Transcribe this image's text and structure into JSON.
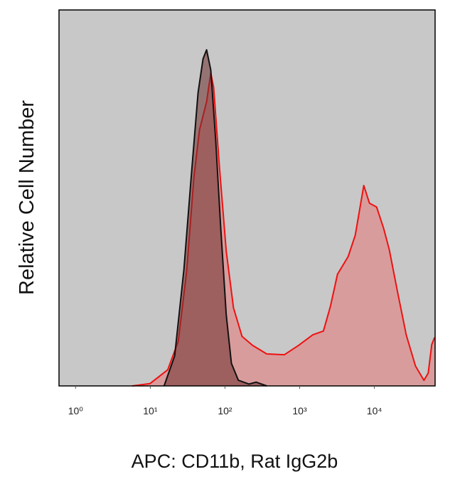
{
  "chart_data": {
    "type": "area",
    "x_label": "APC: CD11b, Rat IgG2b",
    "y_label": "Relative Cell Number",
    "xscale": "log",
    "xlim": [
      0.6,
      65000
    ],
    "ylim": [
      0,
      100
    ],
    "xticks": [
      {
        "value": 1,
        "label": "10⁰"
      },
      {
        "value": 10,
        "label": "10¹"
      },
      {
        "value": 100,
        "label": "10²"
      },
      {
        "value": 1000,
        "label": "10³"
      },
      {
        "value": 10000,
        "label": "10⁴"
      }
    ],
    "background": "#c8c8c8",
    "series": [
      {
        "color": "#ee1111",
        "fill": "rgba(232,120,120,0.55)",
        "x": [
          5.73,
          9.89,
          17.1,
          23.7,
          30.8,
          38.3,
          45.6,
          56.7,
          64.6,
          70.5,
          84.0,
          104,
          130,
          169,
          234,
          362,
          625,
          968,
          1500,
          2080,
          2580,
          3210,
          4460,
          5550,
          7210,
          8590,
          10700,
          13300,
          15800,
          20500,
          26700,
          35500,
          46100,
          52500,
          58600,
          64000
        ],
        "values": [
          0,
          0.6,
          4.3,
          11.9,
          30.8,
          55.4,
          68.1,
          75.6,
          83.2,
          79.4,
          58.6,
          35.9,
          20.8,
          13.2,
          10.8,
          8.5,
          8.3,
          10.8,
          13.6,
          14.6,
          21.2,
          29.7,
          34.4,
          40.1,
          53.3,
          48.6,
          47.6,
          41.9,
          36.3,
          24.9,
          13.6,
          5.3,
          1.5,
          3.4,
          11.0,
          12.9
        ]
      },
      {
        "color": "#111111",
        "fill": "rgba(110,45,45,0.55)",
        "x": [
          15.3,
          21.2,
          28.2,
          35.1,
          43.6,
          50.9,
          56.7,
          64.6,
          75.3,
          87.7,
          104,
          122,
          151,
          210,
          261,
          362
        ],
        "values": [
          0,
          8,
          31,
          55,
          78,
          87,
          89.4,
          84,
          65,
          42,
          19,
          6,
          1.5,
          0.5,
          1,
          0
        ]
      }
    ]
  }
}
